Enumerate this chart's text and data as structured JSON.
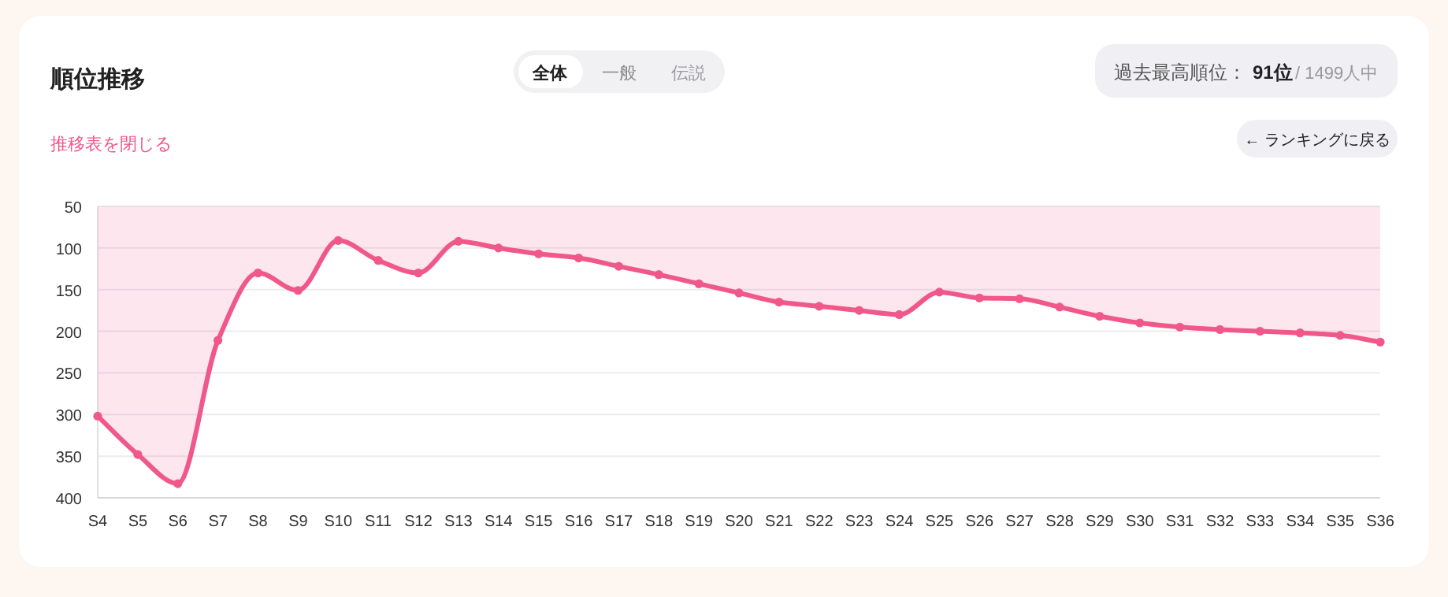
{
  "chart_data": {
    "type": "area",
    "title": "順位推移",
    "annotations": [
      "全体",
      "一般",
      "伝説",
      "推移表を閉じる",
      "過去最高順位：",
      "91位",
      "/ 1499人中",
      "← ランキングに戻る"
    ],
    "categories": [
      "S4",
      "S5",
      "S6",
      "S7",
      "S8",
      "S9",
      "S10",
      "S11",
      "S12",
      "S13",
      "S14",
      "S15",
      "S16",
      "S17",
      "S18",
      "S19",
      "S20",
      "S21",
      "S22",
      "S23",
      "S24",
      "S25",
      "S26",
      "S27",
      "S28",
      "S29",
      "S30",
      "S31",
      "S32",
      "S33",
      "S34",
      "S35",
      "S36"
    ],
    "series": [
      {
        "color": "#f0588a",
        "values": [
          302,
          348,
          383,
          211,
          130,
          151,
          91,
          115,
          130,
          92,
          100,
          107,
          112,
          122,
          132,
          143,
          154,
          165,
          170,
          175,
          180,
          153,
          160,
          161,
          171,
          182,
          190,
          195,
          198,
          200,
          202,
          205,
          213
        ]
      }
    ],
    "ylim": [
      400,
      50
    ],
    "yticks": [
      50,
      100,
      150,
      200,
      250,
      300,
      350,
      400
    ],
    "grid": "y",
    "marker": "circle",
    "line_style": "solid"
  }
}
